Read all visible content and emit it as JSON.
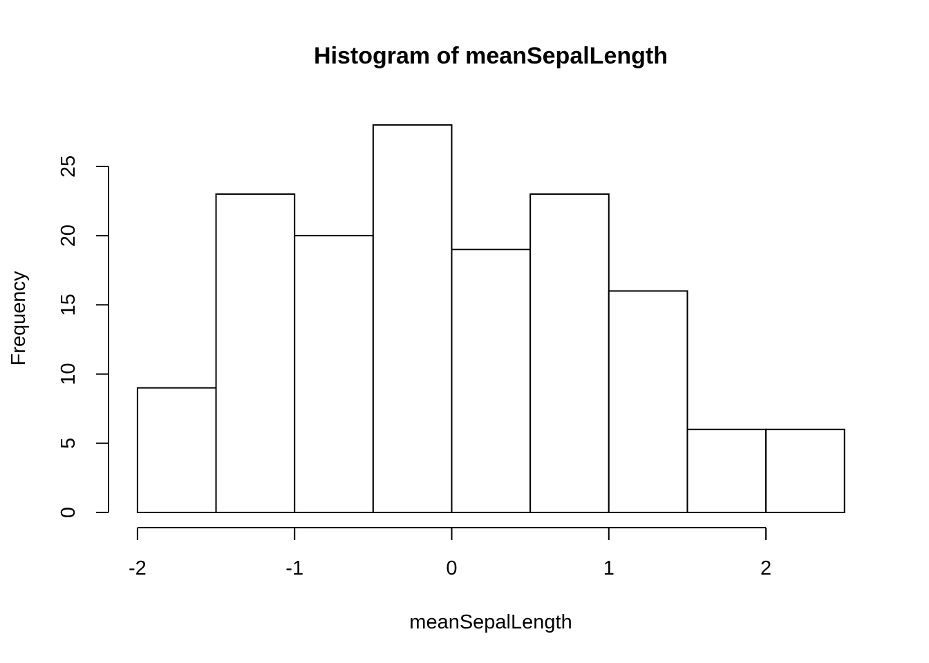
{
  "chart_data": {
    "type": "bar",
    "subtype": "histogram",
    "title": "Histogram of meanSepalLength",
    "xlabel": "meanSepalLength",
    "ylabel": "Frequency",
    "bins": [
      {
        "start": -2.0,
        "end": -1.5,
        "count": 9
      },
      {
        "start": -1.5,
        "end": -1.0,
        "count": 23
      },
      {
        "start": -1.0,
        "end": -0.5,
        "count": 20
      },
      {
        "start": -0.5,
        "end": 0.0,
        "count": 28
      },
      {
        "start": 0.0,
        "end": 0.5,
        "count": 19
      },
      {
        "start": 0.5,
        "end": 1.0,
        "count": 23
      },
      {
        "start": 1.0,
        "end": 1.5,
        "count": 16
      },
      {
        "start": 1.5,
        "end": 2.0,
        "count": 6
      },
      {
        "start": 2.0,
        "end": 2.5,
        "count": 6
      }
    ],
    "x_ticks": [
      -2,
      -1,
      0,
      1,
      2
    ],
    "x_tick_labels": [
      "-2",
      "-1",
      "0",
      "1",
      "2"
    ],
    "y_ticks": [
      0,
      5,
      10,
      15,
      20,
      25
    ],
    "y_tick_labels": [
      "0",
      "5",
      "10",
      "15",
      "20",
      "25"
    ],
    "grid": false,
    "colors": {
      "bar_fill": "#ffffff",
      "bar_stroke": "#000000"
    }
  }
}
